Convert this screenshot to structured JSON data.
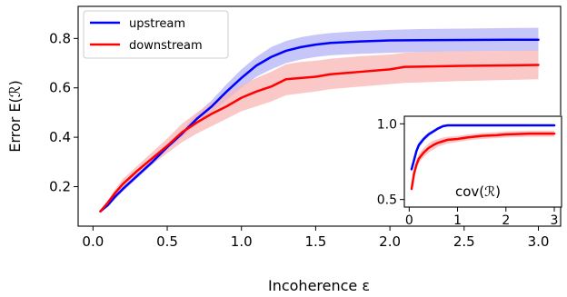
{
  "chart_data": [
    {
      "type": "line",
      "xlabel": "Incoherence ε",
      "ylabel": "Error E(ℛ)",
      "xlim": [
        -0.1,
        3.15
      ],
      "ylim": [
        0.04,
        0.93
      ],
      "xticks": [
        0.0,
        0.5,
        1.0,
        1.5,
        2.0,
        2.5,
        3.0
      ],
      "xtick_labels": [
        "0.0",
        "0.5",
        "1.0",
        "1.5",
        "2.0",
        "2.5",
        "3.0"
      ],
      "yticks": [
        0.2,
        0.4,
        0.6,
        0.8
      ],
      "ytick_labels": [
        "0.2",
        "0.4",
        "0.6",
        "0.8"
      ],
      "grid": false,
      "legend_position": "top-left",
      "series": [
        {
          "name": "upstream",
          "color": "#0000ff",
          "band_color": "#b3b3f7",
          "x": [
            0.05,
            0.1,
            0.15,
            0.2,
            0.3,
            0.4,
            0.5,
            0.6,
            0.7,
            0.8,
            0.9,
            1.0,
            1.1,
            1.2,
            1.3,
            1.4,
            1.5,
            1.6,
            1.8,
            2.0,
            2.2,
            2.5,
            2.8,
            3.0
          ],
          "y": [
            0.1,
            0.125,
            0.16,
            0.19,
            0.245,
            0.3,
            0.36,
            0.415,
            0.475,
            0.525,
            0.585,
            0.64,
            0.69,
            0.725,
            0.75,
            0.765,
            0.775,
            0.782,
            0.788,
            0.792,
            0.793,
            0.794,
            0.795,
            0.795
          ],
          "lower": [
            0.095,
            0.12,
            0.15,
            0.18,
            0.235,
            0.29,
            0.35,
            0.4,
            0.455,
            0.5,
            0.55,
            0.6,
            0.645,
            0.675,
            0.7,
            0.715,
            0.725,
            0.732,
            0.738,
            0.742,
            0.745,
            0.748,
            0.75,
            0.75
          ],
          "upper": [
            0.105,
            0.13,
            0.17,
            0.2,
            0.255,
            0.31,
            0.37,
            0.43,
            0.495,
            0.55,
            0.615,
            0.675,
            0.725,
            0.765,
            0.79,
            0.805,
            0.815,
            0.822,
            0.83,
            0.835,
            0.838,
            0.84,
            0.842,
            0.843
          ]
        },
        {
          "name": "downstream",
          "color": "#ff0000",
          "band_color": "#f9b6b6",
          "x": [
            0.05,
            0.1,
            0.15,
            0.2,
            0.3,
            0.4,
            0.5,
            0.6,
            0.7,
            0.8,
            0.9,
            1.0,
            1.1,
            1.2,
            1.3,
            1.4,
            1.5,
            1.6,
            1.8,
            2.0,
            2.1,
            2.2,
            2.5,
            2.8,
            3.0
          ],
          "y": [
            0.1,
            0.135,
            0.175,
            0.21,
            0.265,
            0.315,
            0.365,
            0.42,
            0.46,
            0.495,
            0.525,
            0.56,
            0.585,
            0.605,
            0.635,
            0.64,
            0.645,
            0.655,
            0.665,
            0.675,
            0.685,
            0.686,
            0.689,
            0.691,
            0.693
          ],
          "lower": [
            0.095,
            0.125,
            0.16,
            0.19,
            0.245,
            0.29,
            0.335,
            0.38,
            0.415,
            0.445,
            0.475,
            0.505,
            0.525,
            0.545,
            0.57,
            0.578,
            0.585,
            0.595,
            0.605,
            0.615,
            0.62,
            0.622,
            0.628,
            0.632,
            0.635
          ],
          "upper": [
            0.105,
            0.145,
            0.19,
            0.23,
            0.285,
            0.34,
            0.395,
            0.455,
            0.5,
            0.54,
            0.575,
            0.61,
            0.64,
            0.665,
            0.695,
            0.705,
            0.71,
            0.718,
            0.728,
            0.735,
            0.742,
            0.745,
            0.748,
            0.75,
            0.752
          ]
        }
      ]
    },
    {
      "type": "line",
      "title": "cov(ℛ)",
      "xlim": [
        -0.1,
        3.15
      ],
      "ylim": [
        0.45,
        1.05
      ],
      "xticks": [
        0,
        1,
        2,
        3
      ],
      "xtick_labels": [
        "0",
        "1",
        "2",
        "3"
      ],
      "yticks": [
        0.5,
        1.0
      ],
      "ytick_labels": [
        "0.5",
        "1.0"
      ],
      "grid": false,
      "series": [
        {
          "color": "#0000ff",
          "band_color": "#b3b3f7",
          "x": [
            0.05,
            0.1,
            0.15,
            0.2,
            0.3,
            0.4,
            0.5,
            0.6,
            0.7,
            0.8,
            1.0,
            1.5,
            2.0,
            2.5,
            3.0
          ],
          "y": [
            0.7,
            0.76,
            0.82,
            0.86,
            0.9,
            0.93,
            0.95,
            0.97,
            0.985,
            0.99,
            0.99,
            0.99,
            0.99,
            0.99,
            0.99
          ],
          "lower": [
            0.68,
            0.74,
            0.8,
            0.84,
            0.885,
            0.915,
            0.94,
            0.96,
            0.975,
            0.985,
            0.987,
            0.987,
            0.987,
            0.987,
            0.987
          ],
          "upper": [
            0.72,
            0.78,
            0.84,
            0.88,
            0.915,
            0.945,
            0.96,
            0.98,
            0.99,
            0.995,
            0.995,
            0.995,
            0.995,
            0.995,
            0.995
          ]
        },
        {
          "color": "#ff0000",
          "band_color": "#f9b6b6",
          "x": [
            0.05,
            0.1,
            0.15,
            0.2,
            0.3,
            0.4,
            0.5,
            0.6,
            0.7,
            0.8,
            1.0,
            1.2,
            1.5,
            1.8,
            2.0,
            2.5,
            3.0
          ],
          "y": [
            0.57,
            0.67,
            0.73,
            0.77,
            0.81,
            0.84,
            0.86,
            0.875,
            0.885,
            0.895,
            0.9,
            0.91,
            0.92,
            0.925,
            0.93,
            0.935,
            0.935
          ],
          "lower": [
            0.55,
            0.64,
            0.7,
            0.74,
            0.78,
            0.81,
            0.83,
            0.85,
            0.86,
            0.87,
            0.88,
            0.89,
            0.9,
            0.905,
            0.91,
            0.915,
            0.915
          ],
          "upper": [
            0.59,
            0.7,
            0.76,
            0.8,
            0.84,
            0.87,
            0.89,
            0.9,
            0.91,
            0.915,
            0.92,
            0.93,
            0.94,
            0.945,
            0.95,
            0.955,
            0.955
          ]
        }
      ]
    }
  ]
}
